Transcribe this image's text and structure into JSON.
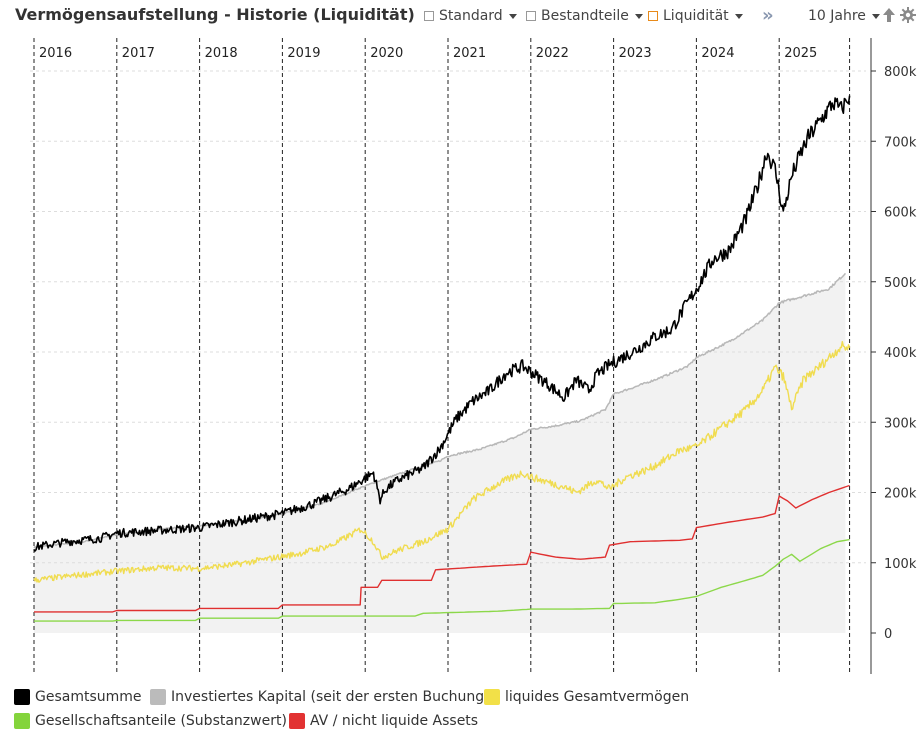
{
  "toolbar": {
    "title": "Vermögensaufstellung - Historie (Liquidität)",
    "standard": "Standard",
    "bestandteile": "Bestandteile",
    "liquiditaet": "Liquidität",
    "period": "10 Jahre",
    "more_icon": "double-chevron-right-icon",
    "upload_icon": "upload-arrow-icon",
    "settings_icon": "gear-icon"
  },
  "colors": {
    "gesamt": "#000000",
    "investiert": "#b8b8b8",
    "investiert_fill": "#f2f2f2",
    "liquide": "#f0dc50",
    "av": "#e03030",
    "gesellschaft": "#8cd84a"
  },
  "legend": [
    {
      "label": "Gesamtsumme",
      "color": "#000000"
    },
    {
      "label": "Investiertes Kapital (seit der ersten Buchung)",
      "color": "#bbbbbb"
    },
    {
      "label": "liquides Gesamtvermögen",
      "color": "#f2e048"
    },
    {
      "label": "Gesellschaftsanteile (Substanzwert)",
      "color": "#84d43c"
    },
    {
      "label": "AV / nicht liquide Assets",
      "color": "#e23232"
    }
  ],
  "chart_data": {
    "type": "line",
    "title": "Vermögensaufstellung - Historie (Liquidität)",
    "xlim": [
      2015.75,
      2025.85
    ],
    "ylim": [
      -60000,
      860000
    ],
    "y_ticks": [
      0,
      100000,
      200000,
      300000,
      400000,
      500000,
      600000,
      700000,
      800000
    ],
    "y_tick_labels": [
      "0",
      "100k",
      "200k",
      "300k",
      "400k",
      "500k",
      "600k",
      "700k",
      "800k"
    ],
    "year_labels": [
      "2016",
      "2017",
      "2018",
      "2019",
      "2020",
      "2021",
      "2022",
      "2023",
      "2024",
      "2025"
    ],
    "year_starts": [
      2016,
      2017,
      2018,
      2019,
      2020,
      2021,
      2022,
      2023,
      2024,
      2025
    ],
    "series": [
      {
        "name": "Investiertes Kapital (seit der ersten Buchung)",
        "key": "investiert",
        "x": [
          2016.0,
          2016.6,
          2017.0,
          2017.5,
          2018.0,
          2018.5,
          2019.0,
          2019.5,
          2019.9,
          2020.2,
          2020.5,
          2020.9,
          2021.0,
          2021.4,
          2021.8,
          2022.0,
          2022.3,
          2022.6,
          2022.9,
          2023.0,
          2023.3,
          2023.6,
          2023.9,
          2024.0,
          2024.4,
          2024.8,
          2025.0,
          2025.3,
          2025.6,
          2025.8
        ],
        "y": [
          122000,
          130000,
          140000,
          148000,
          152000,
          160000,
          170000,
          185000,
          205000,
          218000,
          230000,
          245000,
          252000,
          262000,
          278000,
          290000,
          295000,
          302000,
          318000,
          340000,
          352000,
          365000,
          380000,
          392000,
          415000,
          445000,
          470000,
          480000,
          490000,
          512000
        ]
      },
      {
        "name": "Gesamtsumme",
        "key": "gesamt",
        "x": [
          2016.0,
          2016.4,
          2016.8,
          2017.0,
          2017.5,
          2018.0,
          2018.5,
          2019.0,
          2019.4,
          2019.8,
          2020.1,
          2020.18,
          2020.25,
          2020.4,
          2020.7,
          2020.9,
          2021.1,
          2021.3,
          2021.5,
          2021.7,
          2021.9,
          2022.0,
          2022.2,
          2022.4,
          2022.55,
          2022.7,
          2022.8,
          2022.95,
          2023.1,
          2023.3,
          2023.5,
          2023.7,
          2023.85,
          2024.0,
          2024.2,
          2024.4,
          2024.6,
          2024.75,
          2024.85,
          2024.95,
          2025.05,
          2025.15,
          2025.25,
          2025.35,
          2025.5,
          2025.65,
          2025.75,
          2025.85
        ],
        "y": [
          122000,
          130000,
          135000,
          142000,
          146000,
          150000,
          160000,
          170000,
          185000,
          205000,
          228000,
          190000,
          205000,
          218000,
          235000,
          262000,
          305000,
          330000,
          345000,
          370000,
          380000,
          372000,
          355000,
          335000,
          360000,
          345000,
          368000,
          382000,
          392000,
          405000,
          422000,
          432000,
          462000,
          490000,
          532000,
          545000,
          590000,
          640000,
          685000,
          660000,
          598000,
          650000,
          680000,
          705000,
          730000,
          755000,
          745000,
          765000
        ]
      },
      {
        "name": "liquides Gesamtvermögen",
        "key": "liquide",
        "x": [
          2016.0,
          2016.5,
          2017.0,
          2017.5,
          2018.0,
          2018.4,
          2018.8,
          2019.2,
          2019.6,
          2019.95,
          2020.1,
          2020.2,
          2020.4,
          2020.7,
          2021.0,
          2021.3,
          2021.6,
          2021.9,
          2022.0,
          2022.2,
          2022.4,
          2022.55,
          2022.8,
          2022.95,
          2023.15,
          2023.4,
          2023.6,
          2023.8,
          2024.0,
          2024.3,
          2024.6,
          2024.8,
          2024.95,
          2025.05,
          2025.15,
          2025.3,
          2025.45,
          2025.6,
          2025.75,
          2025.85
        ],
        "y": [
          75000,
          82000,
          88000,
          93000,
          92000,
          97000,
          105000,
          113000,
          125000,
          148000,
          130000,
          108000,
          118000,
          130000,
          148000,
          190000,
          212000,
          228000,
          222000,
          215000,
          208000,
          200000,
          218000,
          205000,
          222000,
          232000,
          245000,
          260000,
          265000,
          292000,
          318000,
          345000,
          378000,
          365000,
          320000,
          362000,
          375000,
          392000,
          408000,
          406000
        ]
      },
      {
        "name": "AV / nicht liquide Assets",
        "key": "av",
        "x": [
          2016.0,
          2016.95,
          2017.0,
          2017.95,
          2018.0,
          2018.95,
          2019.0,
          2019.94,
          2019.95,
          2020.15,
          2020.2,
          2020.8,
          2020.85,
          2021.5,
          2021.95,
          2022.0,
          2022.3,
          2022.6,
          2022.9,
          2022.95,
          2023.2,
          2023.8,
          2023.95,
          2024.0,
          2024.4,
          2024.8,
          2024.95,
          2025.0,
          2025.1,
          2025.2,
          2025.4,
          2025.6,
          2025.85
        ],
        "y": [
          30000,
          30000,
          32000,
          32000,
          35000,
          35000,
          40000,
          40000,
          65000,
          65000,
          75000,
          75000,
          90000,
          95000,
          98000,
          115000,
          108000,
          105000,
          108000,
          125000,
          130000,
          132000,
          134000,
          150000,
          158000,
          165000,
          170000,
          195000,
          188000,
          178000,
          190000,
          200000,
          210000
        ]
      },
      {
        "name": "Gesellschaftsanteile (Substanzwert)",
        "key": "gesellschaft",
        "x": [
          2016.0,
          2016.95,
          2017.0,
          2017.95,
          2018.0,
          2018.95,
          2019.0,
          2020.6,
          2020.7,
          2021.6,
          2022.0,
          2022.5,
          2022.95,
          2023.0,
          2023.5,
          2023.8,
          2024.0,
          2024.3,
          2024.6,
          2024.8,
          2024.95,
          2025.05,
          2025.15,
          2025.25,
          2025.5,
          2025.7,
          2025.85
        ],
        "y": [
          17000,
          17000,
          18000,
          18000,
          21000,
          21000,
          24000,
          24000,
          28000,
          31000,
          34000,
          34000,
          35000,
          42000,
          43000,
          48000,
          52000,
          65000,
          75000,
          82000,
          95000,
          105000,
          112000,
          102000,
          120000,
          130000,
          133000
        ]
      }
    ]
  }
}
